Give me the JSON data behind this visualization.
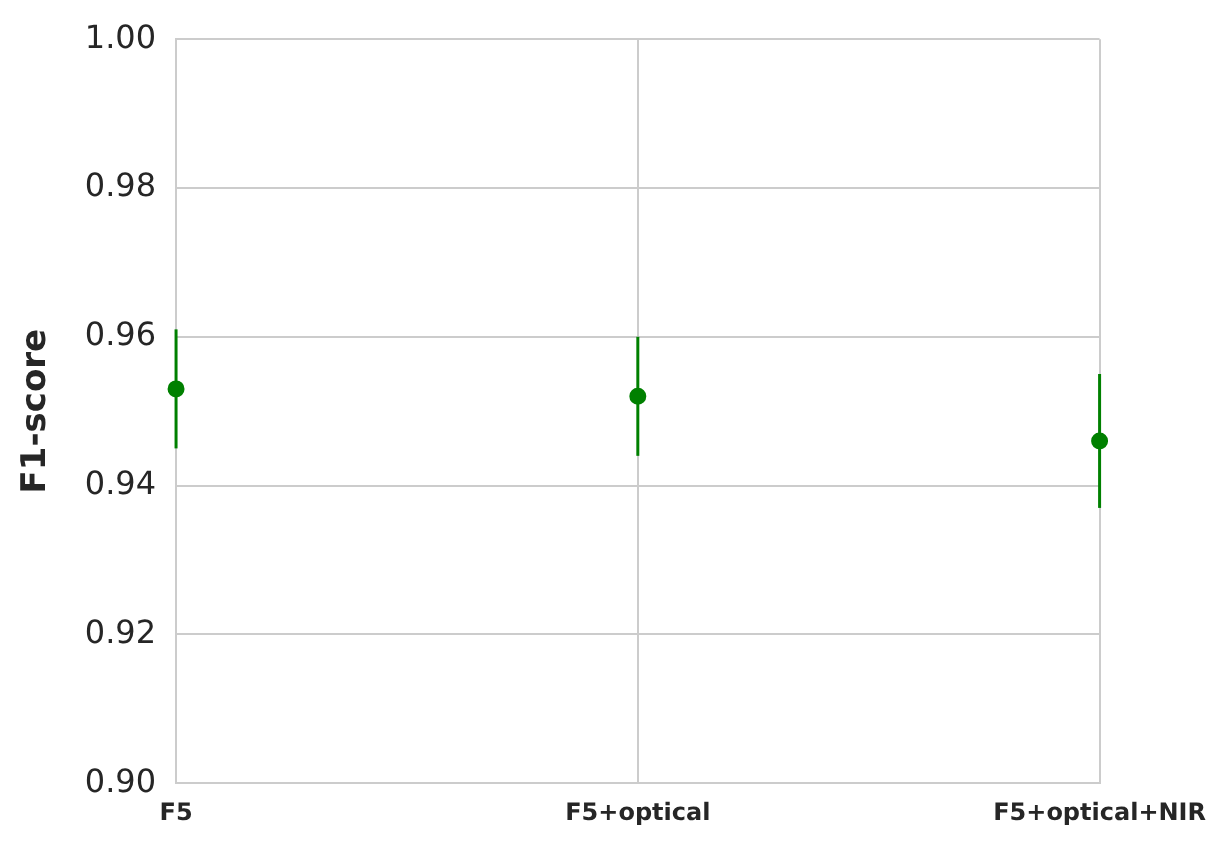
{
  "chart_data": {
    "type": "scatter",
    "ylabel": "F1-score",
    "categories": [
      "F5",
      "F5+optical",
      "F5+optical+NIR"
    ],
    "series": [
      {
        "color": "#008000",
        "values": [
          0.953,
          0.952,
          0.946
        ],
        "errors": [
          0.008,
          0.008,
          0.009
        ]
      }
    ],
    "ylim": [
      0.9,
      1.0
    ],
    "yticks": [
      {
        "value": 0.9,
        "label": "0.90"
      },
      {
        "value": 0.92,
        "label": "0.92"
      },
      {
        "value": 0.94,
        "label": "0.94"
      },
      {
        "value": 0.96,
        "label": "0.96"
      },
      {
        "value": 0.98,
        "label": "0.98"
      },
      {
        "value": 1.0,
        "label": "1.00"
      }
    ],
    "grid": true,
    "legend": false,
    "marker": "circle"
  }
}
